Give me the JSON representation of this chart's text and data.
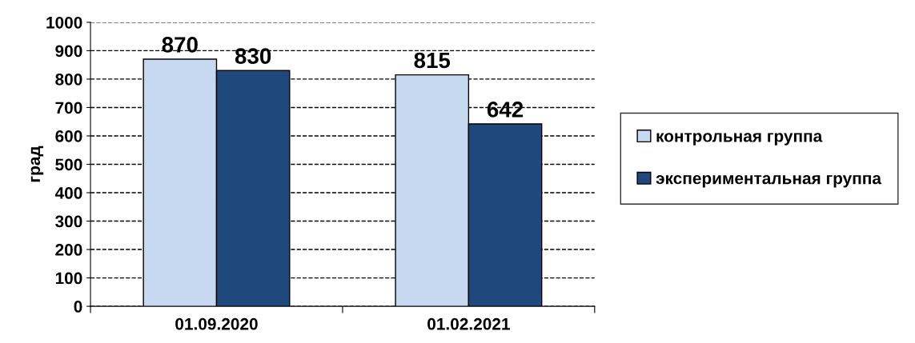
{
  "chart_data": {
    "type": "bar",
    "ylabel": "град",
    "categories": [
      "01.09.2020",
      "01.02.2021"
    ],
    "series": [
      {
        "name": "контрольная группа",
        "color": "#c6d9f0",
        "values": [
          870,
          815
        ]
      },
      {
        "name": "экспериментальная группа",
        "color": "#1f497d",
        "values": [
          830,
          642
        ]
      }
    ],
    "ylim": [
      0,
      1000
    ],
    "yticks": [
      0,
      100,
      200,
      300,
      400,
      500,
      600,
      700,
      800,
      900,
      1000
    ],
    "grid": "y",
    "legend": "right",
    "data_labels": true
  }
}
